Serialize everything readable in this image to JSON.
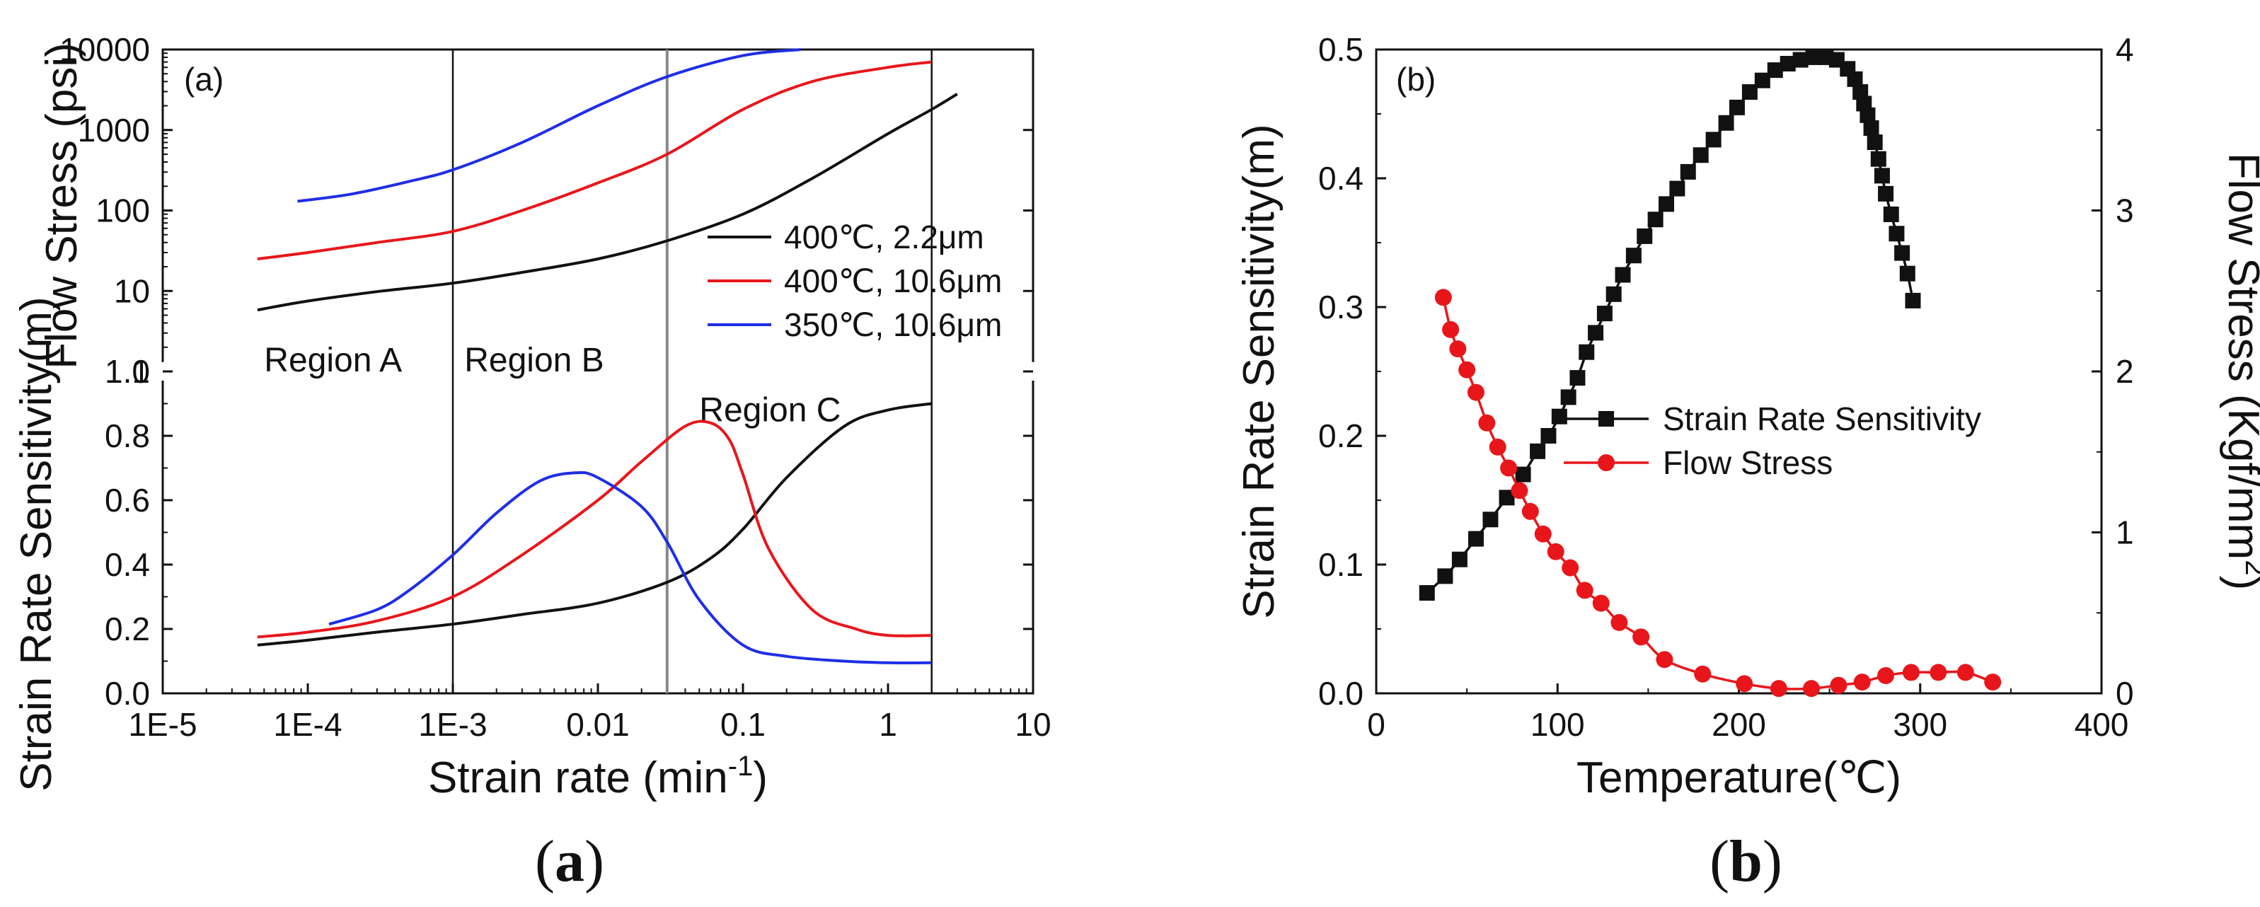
{
  "chart_data": [
    {
      "id": "a",
      "type": "line",
      "panel_tag": "(a)",
      "caption_open": "(",
      "caption_letter": "a",
      "caption_close": ")",
      "xlabel": "Strain rate (min",
      "xlabel_sup": "-1",
      "xlabel_close": ")",
      "xscale": "log",
      "xlim": [
        1e-05,
        10
      ],
      "xticks": [
        {
          "v": 1e-05,
          "label": "1E-5"
        },
        {
          "v": 0.0001,
          "label": "1E-4"
        },
        {
          "v": 0.001,
          "label": "1E-3"
        },
        {
          "v": 0.01,
          "label": "0.01"
        },
        {
          "v": 0.1,
          "label": "0.1"
        },
        {
          "v": 1,
          "label": "1"
        },
        {
          "v": 10,
          "label": "10"
        }
      ],
      "top_ylabel": "Flow Stress (psi)",
      "top_yscale": "log",
      "top_ylim": [
        1,
        10000
      ],
      "top_yticks": [
        {
          "v": 1,
          "label": "1"
        },
        {
          "v": 10,
          "label": "10"
        },
        {
          "v": 100,
          "label": "100"
        },
        {
          "v": 1000,
          "label": "1000"
        },
        {
          "v": 10000,
          "label": "10000"
        }
      ],
      "bottom_ylabel": "Strain Rate Sensitivity(m)",
      "bottom_ylim": [
        0,
        1.0
      ],
      "bottom_yticks": [
        {
          "v": 0.0,
          "label": "0.0"
        },
        {
          "v": 0.2,
          "label": "0.2"
        },
        {
          "v": 0.4,
          "label": "0.4"
        },
        {
          "v": 0.6,
          "label": "0.6"
        },
        {
          "v": 0.8,
          "label": "0.8"
        },
        {
          "v": 1.0,
          "label": "1.0"
        }
      ],
      "vlines": [
        {
          "x": 0.001,
          "color": "#111111"
        },
        {
          "x": 0.03,
          "color": "#888888"
        },
        {
          "x": 2,
          "color": "#111111"
        }
      ],
      "regions": [
        {
          "label": "Region A",
          "x": 5e-05,
          "panel": "top",
          "y": 0.2
        },
        {
          "label": "Region B",
          "x": 0.0012,
          "panel": "top",
          "y": 0.2
        },
        {
          "label": "Region C",
          "x": 0.05,
          "panel": "bottom",
          "y": 0.88
        }
      ],
      "legend": {
        "placement": "right-middle of upper panel",
        "entries": [
          {
            "label": "400℃, 2.2μm",
            "color": "#111111"
          },
          {
            "label": "400℃, 10.6μm",
            "color": "#e8161b"
          },
          {
            "label": "350℃, 10.6μm",
            "color": "#1f2ee6"
          }
        ]
      },
      "series_flow": [
        {
          "name": "400℃, 2.2μm",
          "color": "#111111",
          "x": [
            4.5e-05,
            0.0001,
            0.0003,
            0.001,
            0.003,
            0.01,
            0.03,
            0.1,
            0.3,
            1,
            2,
            3
          ],
          "y": [
            5.8,
            7.5,
            9.8,
            12.5,
            17,
            25,
            42,
            90,
            250,
            900,
            1800,
            2800
          ]
        },
        {
          "name": "400℃, 10.6μm",
          "color": "#e8161b",
          "x": [
            4.5e-05,
            0.0001,
            0.0003,
            0.001,
            0.003,
            0.01,
            0.03,
            0.1,
            0.3,
            1,
            2
          ],
          "y": [
            25,
            30,
            40,
            55,
            100,
            220,
            500,
            1800,
            4000,
            6000,
            7000
          ]
        },
        {
          "name": "350℃, 10.6μm",
          "color": "#1f2ee6",
          "x": [
            8.5e-05,
            0.0002,
            0.0005,
            0.001,
            0.003,
            0.01,
            0.03,
            0.1,
            0.25
          ],
          "y": [
            130,
            160,
            230,
            320,
            700,
            2000,
            4600,
            8400,
            10000
          ]
        }
      ],
      "series_m": [
        {
          "name": "400℃, 2.2μm",
          "color": "#111111",
          "x": [
            4.5e-05,
            0.0001,
            0.0003,
            0.001,
            0.003,
            0.01,
            0.03,
            0.06,
            0.1,
            0.2,
            0.5,
            1,
            2
          ],
          "y": [
            0.15,
            0.165,
            0.19,
            0.215,
            0.245,
            0.28,
            0.345,
            0.42,
            0.51,
            0.67,
            0.83,
            0.88,
            0.9
          ]
        },
        {
          "name": "400℃, 10.6μm",
          "color": "#e8161b",
          "x": [
            4.5e-05,
            0.0001,
            0.0003,
            0.001,
            0.003,
            0.01,
            0.02,
            0.04,
            0.06,
            0.08,
            0.1,
            0.15,
            0.3,
            0.6,
            1,
            2
          ],
          "y": [
            0.175,
            0.19,
            0.225,
            0.3,
            0.43,
            0.6,
            0.72,
            0.83,
            0.84,
            0.79,
            0.68,
            0.45,
            0.26,
            0.2,
            0.18,
            0.18
          ]
        },
        {
          "name": "350℃, 10.6μm",
          "color": "#1f2ee6",
          "x": [
            0.00014,
            0.0003,
            0.0005,
            0.001,
            0.002,
            0.004,
            0.007,
            0.01,
            0.02,
            0.03,
            0.05,
            0.1,
            0.2,
            0.5,
            1,
            2
          ],
          "y": [
            0.215,
            0.26,
            0.32,
            0.43,
            0.56,
            0.66,
            0.685,
            0.67,
            0.58,
            0.47,
            0.29,
            0.15,
            0.115,
            0.1,
            0.095,
            0.095
          ]
        }
      ]
    },
    {
      "id": "b",
      "type": "line",
      "panel_tag": "(b)",
      "caption_open": "(",
      "caption_letter": "b",
      "caption_close": ")",
      "xlabel": "Temperature(℃)",
      "xlim": [
        0,
        400
      ],
      "xticks": [
        {
          "v": 0,
          "label": "0"
        },
        {
          "v": 100,
          "label": "100"
        },
        {
          "v": 200,
          "label": "200"
        },
        {
          "v": 300,
          "label": "300"
        },
        {
          "v": 400,
          "label": "400"
        }
      ],
      "ylabel_left": "Strain Rate Sensitivity(m)",
      "ylim_left": [
        0,
        0.5
      ],
      "yticks_left": [
        {
          "v": 0.0,
          "label": "0.0"
        },
        {
          "v": 0.1,
          "label": "0.1"
        },
        {
          "v": 0.2,
          "label": "0.2"
        },
        {
          "v": 0.3,
          "label": "0.3"
        },
        {
          "v": 0.4,
          "label": "0.4"
        },
        {
          "v": 0.5,
          "label": "0.5"
        }
      ],
      "ylabel_right": "Flow Stress (Kgf/mm",
      "ylabel_right_sup": "2",
      "ylabel_right_close": ")",
      "ylim_right": [
        0,
        4
      ],
      "yticks_right": [
        {
          "v": 0,
          "label": "0"
        },
        {
          "v": 1,
          "label": "1"
        },
        {
          "v": 2,
          "label": "2"
        },
        {
          "v": 3,
          "label": "3"
        },
        {
          "v": 4,
          "label": "4"
        }
      ],
      "legend": {
        "placement": "center",
        "entries": [
          {
            "label": "Strain Rate Sensitivity",
            "color": "#111111",
            "marker": "square"
          },
          {
            "label": "Flow Stress",
            "color": "#e8161b",
            "marker": "circle"
          }
        ]
      },
      "series": [
        {
          "name": "Strain Rate Sensitivity",
          "color": "#111111",
          "marker": "square",
          "axis": "left",
          "x": [
            28,
            38,
            46,
            55,
            63,
            72,
            81,
            89,
            95,
            101,
            106,
            111,
            116,
            121,
            126,
            131,
            136,
            142,
            148,
            154,
            160,
            166,
            172,
            179,
            186,
            193,
            199,
            206,
            213,
            220,
            227,
            234,
            241,
            248,
            254,
            260,
            264,
            267,
            269,
            271,
            273,
            275,
            277,
            279,
            281,
            284,
            287,
            290,
            293,
            296
          ],
          "y": [
            0.078,
            0.091,
            0.104,
            0.12,
            0.135,
            0.152,
            0.17,
            0.188,
            0.2,
            0.215,
            0.23,
            0.245,
            0.265,
            0.28,
            0.295,
            0.31,
            0.325,
            0.34,
            0.355,
            0.368,
            0.38,
            0.392,
            0.405,
            0.418,
            0.43,
            0.443,
            0.455,
            0.467,
            0.476,
            0.484,
            0.489,
            0.492,
            0.494,
            0.494,
            0.492,
            0.485,
            0.477,
            0.467,
            0.458,
            0.449,
            0.439,
            0.428,
            0.415,
            0.402,
            0.388,
            0.372,
            0.357,
            0.342,
            0.326,
            0.305
          ]
        },
        {
          "name": "Flow Stress",
          "color": "#e8161b",
          "marker": "circle",
          "axis": "right",
          "x": [
            37,
            41,
            45,
            50,
            55,
            61,
            67,
            73,
            79,
            85,
            92,
            99,
            107,
            115,
            124,
            134,
            146,
            159,
            180,
            203,
            222,
            240,
            255,
            268,
            281,
            295,
            310,
            325,
            340
          ],
          "y": [
            2.46,
            2.26,
            2.14,
            2.01,
            1.87,
            1.68,
            1.53,
            1.4,
            1.26,
            1.13,
            0.99,
            0.88,
            0.78,
            0.64,
            0.56,
            0.44,
            0.35,
            0.21,
            0.12,
            0.06,
            0.03,
            0.03,
            0.05,
            0.07,
            0.11,
            0.13,
            0.13,
            0.13,
            0.07
          ]
        }
      ]
    }
  ]
}
